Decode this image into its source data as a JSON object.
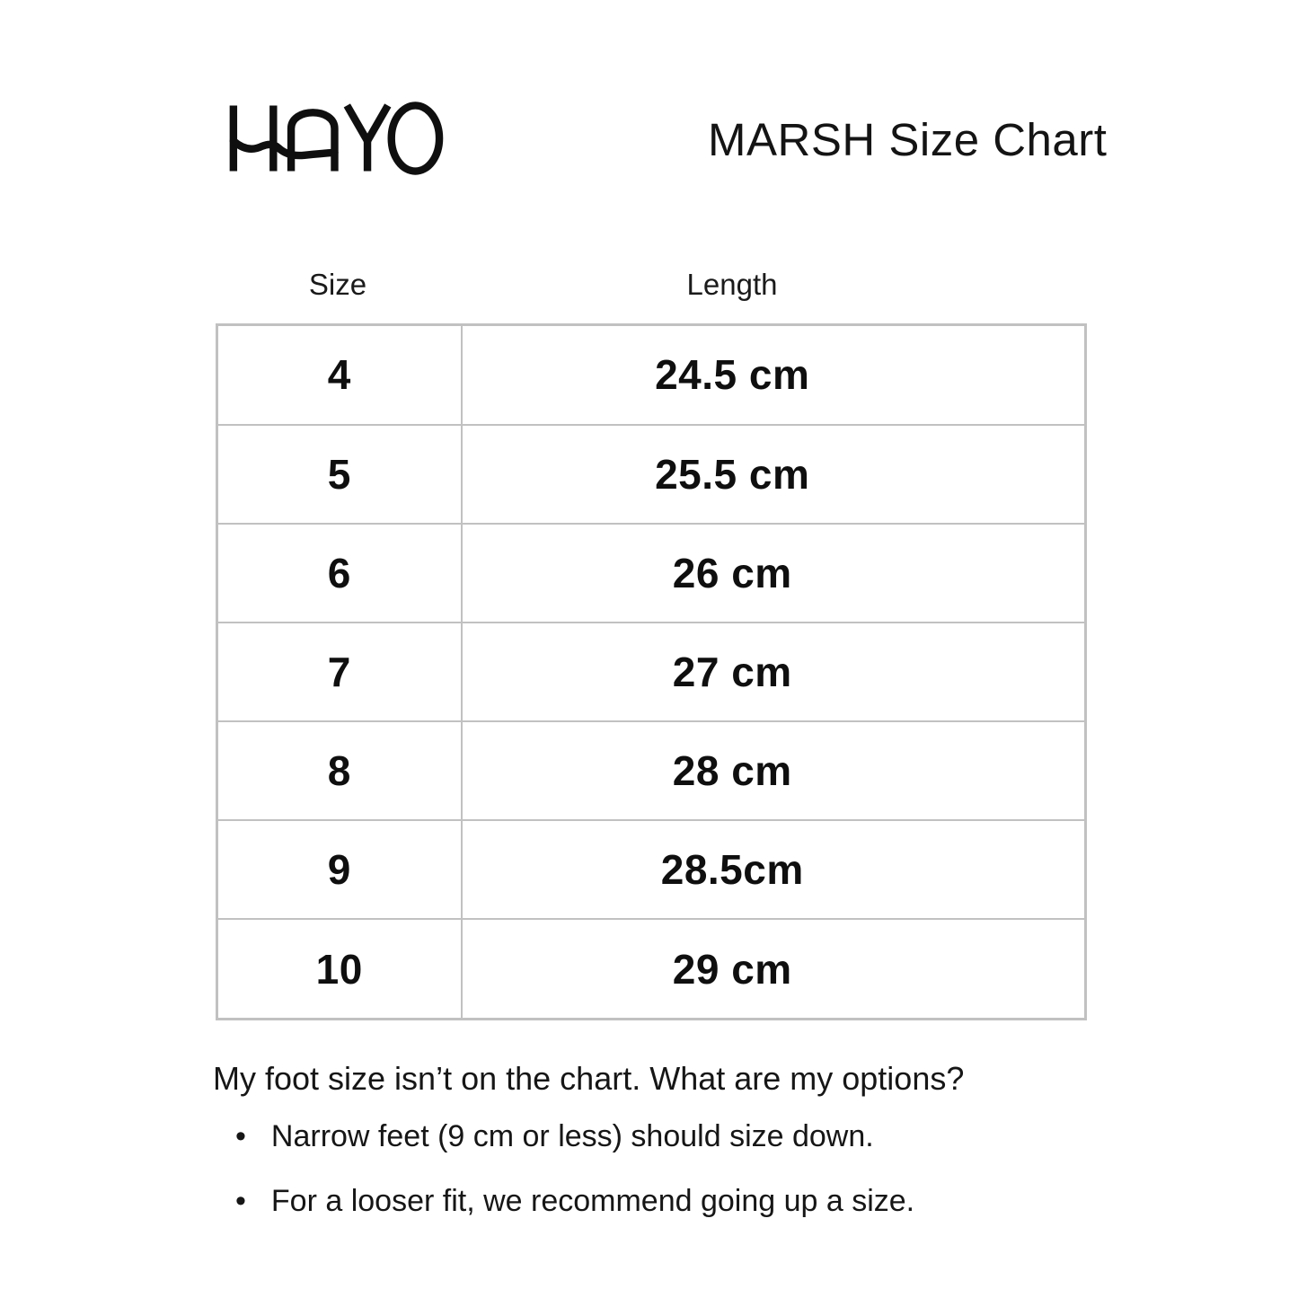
{
  "brand": {
    "logo_text": "HAYO"
  },
  "header": {
    "title": "MARSH Size Chart"
  },
  "table": {
    "columns": [
      "Size",
      "Length"
    ],
    "rows": [
      {
        "size": "4",
        "length": "24.5 cm"
      },
      {
        "size": "5",
        "length": "25.5 cm"
      },
      {
        "size": "6",
        "length": "26 cm"
      },
      {
        "size": "7",
        "length": "27 cm"
      },
      {
        "size": "8",
        "length": "28 cm"
      },
      {
        "size": "9",
        "length": "28.5cm"
      },
      {
        "size": "10",
        "length": "29 cm"
      }
    ]
  },
  "notes": {
    "question": "My foot size isn’t on the chart. What are my options?",
    "bullets": [
      "Narrow feet (9 cm or less) should size down.",
      "For a looser fit, we recommend going up a size."
    ]
  },
  "colors": {
    "background": "#ffffff",
    "text": "#141414",
    "table_border": "#c1c1c1"
  },
  "chart_data": {
    "type": "table",
    "title": "MARSH Size Chart",
    "columns": [
      "Size",
      "Length"
    ],
    "rows": [
      [
        "4",
        "24.5 cm"
      ],
      [
        "5",
        "25.5 cm"
      ],
      [
        "6",
        "26 cm"
      ],
      [
        "7",
        "27 cm"
      ],
      [
        "8",
        "28 cm"
      ],
      [
        "9",
        "28.5cm"
      ],
      [
        "10",
        "29 cm"
      ]
    ],
    "notes": [
      "Narrow feet (9 cm or less) should size down.",
      "For a looser fit, we recommend going up a size."
    ]
  }
}
